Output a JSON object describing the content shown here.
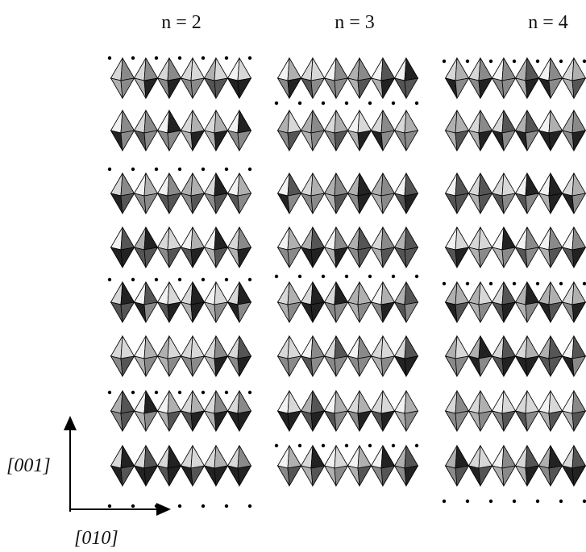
{
  "columns": [
    {
      "label": "n = 2"
    },
    {
      "label": "n = 3"
    },
    {
      "label": "n = 4"
    }
  ],
  "axes": {
    "vertical": "[001]",
    "horizontal": "[010]"
  }
}
